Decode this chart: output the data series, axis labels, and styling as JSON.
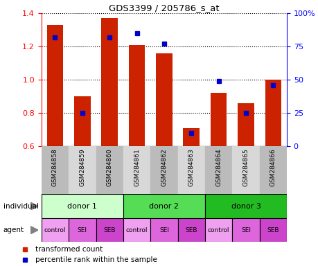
{
  "title": "GDS3399 / 205786_s_at",
  "samples": [
    "GSM284858",
    "GSM284859",
    "GSM284860",
    "GSM284861",
    "GSM284862",
    "GSM284863",
    "GSM284864",
    "GSM284865",
    "GSM284866"
  ],
  "red_values": [
    1.33,
    0.9,
    1.37,
    1.21,
    1.16,
    0.71,
    0.92,
    0.86,
    1.0
  ],
  "blue_values": [
    82,
    25,
    82,
    85,
    77,
    10,
    49,
    25,
    46
  ],
  "ylim_left": [
    0.6,
    1.4
  ],
  "ylim_right": [
    0,
    100
  ],
  "yticks_left": [
    0.6,
    0.8,
    1.0,
    1.2,
    1.4
  ],
  "yticks_right": [
    0,
    25,
    50,
    75,
    100
  ],
  "yticklabels_right": [
    "0",
    "25",
    "50",
    "75",
    "100%"
  ],
  "bar_color": "#cc2200",
  "blue_color": "#0000cc",
  "individual_labels": [
    "donor 1",
    "donor 2",
    "donor 3"
  ],
  "individual_colors": [
    "#ccffcc",
    "#55dd55",
    "#22bb22"
  ],
  "agent_labels": [
    "control",
    "SEI",
    "SEB",
    "control",
    "SEI",
    "SEB",
    "control",
    "SEI",
    "SEB"
  ],
  "agent_color_control": "#f0a0f0",
  "agent_color_sei": "#dd66dd",
  "agent_color_seb": "#cc44cc",
  "legend_red": "transformed count",
  "legend_blue": "percentile rank within the sample",
  "xticklabel_bg_dark": "#bbbbbb",
  "xticklabel_bg_light": "#d8d8d8"
}
